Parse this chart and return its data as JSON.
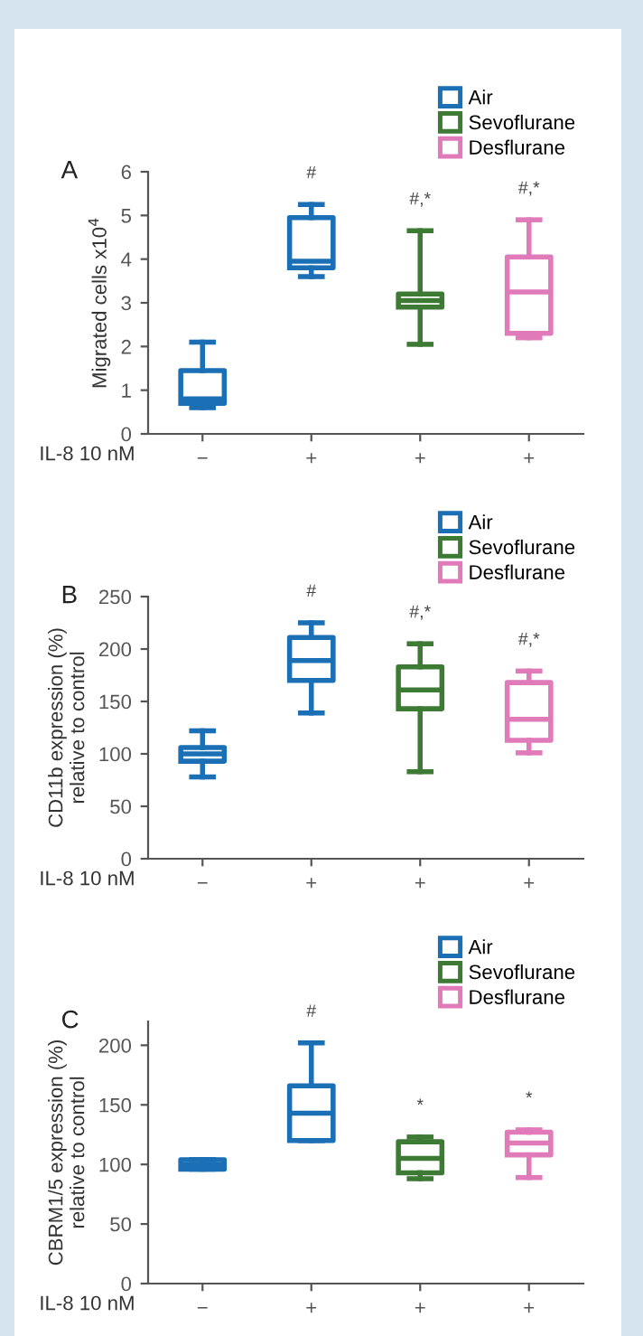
{
  "chart_data": [
    {
      "type": "box",
      "title": "A",
      "ylabel": "Migrated cells x10$^{4}$",
      "xlabel": "IL-8 10 nM",
      "categories": [
        "−",
        "+",
        "+",
        "+"
      ],
      "ylim": [
        0,
        6
      ],
      "yticks": [
        0,
        1,
        2,
        3,
        4,
        5,
        6
      ],
      "legend": "top right",
      "grid": false,
      "annotations": [
        "#",
        "#,*",
        "#,*"
      ],
      "series": [
        {
          "name": "Air",
          "color": "#1a6fb5",
          "boxes": [
            {
              "low": 0.6,
              "q1": 0.7,
              "median": 0.8,
              "q3": 1.45,
              "high": 2.1
            },
            {
              "low": 3.6,
              "q1": 3.8,
              "median": 3.95,
              "q3": 4.95,
              "high": 5.25
            },
            null,
            null
          ]
        },
        {
          "name": "Sevoflurane",
          "color": "#3d7a34",
          "boxes": [
            null,
            null,
            {
              "low": 2.05,
              "q1": 2.9,
              "median": 3.05,
              "q3": 3.2,
              "high": 4.65
            },
            null
          ]
        },
        {
          "name": "Desflurane",
          "color": "#e07ab8",
          "boxes": [
            null,
            null,
            null,
            {
              "low": 2.2,
              "q1": 2.3,
              "median": 3.25,
              "q3": 4.05,
              "high": 4.9
            }
          ]
        }
      ]
    },
    {
      "type": "box",
      "title": "B",
      "ylabel": "CD11b expression (%)\nrelative to control",
      "xlabel": "IL-8 10 nM",
      "categories": [
        "−",
        "+",
        "+",
        "+"
      ],
      "ylim": [
        0,
        250
      ],
      "yticks": [
        0,
        50,
        100,
        150,
        200,
        250
      ],
      "legend": "top right",
      "grid": false,
      "annotations": [
        "#",
        "#,*",
        "#,*"
      ],
      "series": [
        {
          "name": "Air",
          "color": "#1a6fb5",
          "boxes": [
            {
              "low": 78,
              "q1": 93,
              "median": 100,
              "q3": 106,
              "high": 122
            },
            {
              "low": 139,
              "q1": 170,
              "median": 189,
              "q3": 211,
              "high": 225
            },
            null,
            null
          ]
        },
        {
          "name": "Sevoflurane",
          "color": "#3d7a34",
          "boxes": [
            null,
            null,
            {
              "low": 83,
              "q1": 143,
              "median": 161,
              "q3": 183,
              "high": 205
            },
            null
          ]
        },
        {
          "name": "Desflurane",
          "color": "#e07ab8",
          "boxes": [
            null,
            null,
            null,
            {
              "low": 101,
              "q1": 113,
              "median": 133,
              "q3": 168,
              "high": 179
            }
          ]
        }
      ]
    },
    {
      "type": "box",
      "title": "C",
      "ylabel": "CBRM1/5 expression (%)\nrelative to control",
      "xlabel": "IL-8 10 nM",
      "categories": [
        "−",
        "+",
        "+",
        "+"
      ],
      "ylim": [
        0,
        220
      ],
      "yticks": [
        0,
        50,
        100,
        150,
        200
      ],
      "legend": "top right",
      "grid": false,
      "annotations": [
        "#",
        "*",
        "*"
      ],
      "series": [
        {
          "name": "Air",
          "color": "#1a6fb5",
          "boxes": [
            {
              "low": 96,
              "q1": 96,
              "median": 100,
              "q3": 104,
              "high": 104
            },
            {
              "low": 120,
              "q1": 120,
              "median": 143,
              "q3": 166,
              "high": 202
            },
            null,
            null
          ]
        },
        {
          "name": "Sevoflurane",
          "color": "#3d7a34",
          "boxes": [
            null,
            null,
            {
              "low": 88,
              "q1": 93,
              "median": 105,
              "q3": 119,
              "high": 123
            },
            null
          ]
        },
        {
          "name": "Desflurane",
          "color": "#e07ab8",
          "boxes": [
            null,
            null,
            null,
            {
              "low": 89,
              "q1": 108,
              "median": 118,
              "q3": 127,
              "high": 129
            }
          ]
        }
      ]
    }
  ]
}
